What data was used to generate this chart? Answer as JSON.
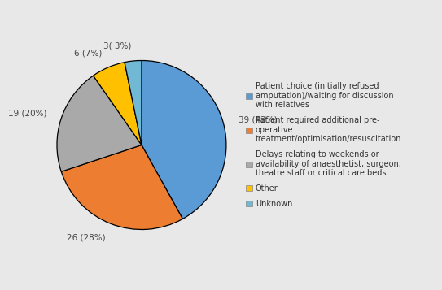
{
  "slices": [
    39,
    26,
    19,
    6,
    3
  ],
  "labels": [
    "39 (42%)",
    "26 (28%)",
    "19 (20%)",
    "6 (7%)",
    "3( 3%)"
  ],
  "colors": [
    "#5B9BD5",
    "#ED7D31",
    "#A9A9A9",
    "#FFC000",
    "#70B8D4"
  ],
  "legend_labels": [
    "Patient choice (initially refused\namputation)/waiting for discussion\nwith relatives",
    "Patient required additional pre-\noperative\ntreatment/optimisation/resuscitation",
    "Delays relating to weekends or\navailability of anaesthetist, surgeon,\ntheatre staff or critical care beds",
    "Other",
    "Unknown"
  ],
  "legend_colors": [
    "#5B9BD5",
    "#ED7D31",
    "#A9A9A9",
    "#FFC000",
    "#70B8D4"
  ],
  "background_color": "#E8E8E8",
  "legend_bg_color": "#F0F0F0",
  "startangle": 90,
  "label_fontsize": 7.5,
  "legend_fontsize": 7.0
}
